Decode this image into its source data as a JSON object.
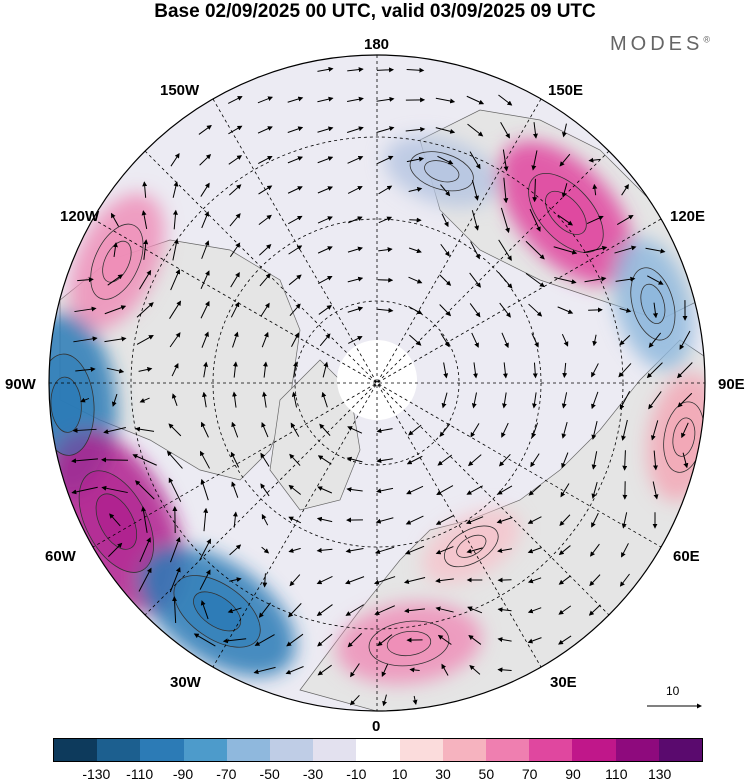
{
  "title": "Base 02/09/2025 00 UTC, valid 03/09/2025 09 UTC",
  "brand": "MODES",
  "brand_mark": "®",
  "longitude_labels": {
    "top": "180",
    "bottom": "0",
    "left": "90W",
    "right": "90E",
    "nw1": "150W",
    "nw2": "120W",
    "ne1": "150E",
    "ne2": "120E",
    "sw1": "60W",
    "sw2": "30W",
    "se1": "60E",
    "se2": "30E"
  },
  "reference_vector": "10",
  "colorbar": {
    "colors": [
      "#0d3a5c",
      "#1c5f8f",
      "#2c7bb6",
      "#4d9bcb",
      "#8fb8dd",
      "#bfcde6",
      "#e3e1ef",
      "#ffffff",
      "#fbdcdc",
      "#f6b3bf",
      "#ef7fb0",
      "#e0479f",
      "#c0178a",
      "#8e0a7d",
      "#5a0a6e"
    ],
    "ticks": [
      "-130",
      "-110",
      "-90",
      "-70",
      "-50",
      "-30",
      "-10",
      "10",
      "30",
      "50",
      "70",
      "90",
      "110",
      "130"
    ]
  },
  "anomalies": [
    {
      "lon": 132,
      "lat": 59,
      "value": 85,
      "color": "#e0479f"
    },
    {
      "lon": 163,
      "lat": 63,
      "value": -35,
      "color": "#b6c6e2"
    },
    {
      "lon": -115,
      "lat": 55,
      "value": 60,
      "color": "#ef8fb8"
    },
    {
      "lon": -86,
      "lat": 52,
      "value": -95,
      "color": "#2c7bb6"
    },
    {
      "lon": -62,
      "lat": 54,
      "value": 110,
      "color": "#b0208e"
    },
    {
      "lon": -35,
      "lat": 56,
      "value": -90,
      "color": "#2c7bb6"
    },
    {
      "lon": 7,
      "lat": 58,
      "value": 60,
      "color": "#ef8fb8"
    },
    {
      "lon": 30,
      "lat": 67,
      "value": 25,
      "color": "#f6c4cc"
    },
    {
      "lon": 106,
      "lat": 55,
      "value": -50,
      "color": "#8fb8dd"
    },
    {
      "lon": 80,
      "lat": 52,
      "value": 45,
      "color": "#f3a8b6"
    }
  ]
}
